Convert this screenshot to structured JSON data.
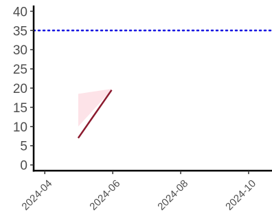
{
  "chart_data": {
    "type": "line",
    "title": "",
    "xlabel": "",
    "ylabel": "",
    "x_scale": "date",
    "xlim": [
      "2024-03-22",
      "2024-10-22"
    ],
    "ylim": [
      -1.5,
      41.5
    ],
    "x_ticks": [
      "2024-04-01",
      "2024-06-01",
      "2024-08-01",
      "2024-10-01"
    ],
    "x_tick_labels": [
      "2024-04",
      "2024-06",
      "2024-08",
      "2024-10"
    ],
    "y_ticks": [
      0,
      5,
      10,
      15,
      20,
      25,
      30,
      35,
      40
    ],
    "y_tick_labels": [
      "0",
      "5",
      "10",
      "15",
      "20",
      "25",
      "30",
      "35",
      "40"
    ],
    "grid": false,
    "legend": "none",
    "series": [
      {
        "x": [
          "2024-05-01",
          "2024-05-31"
        ],
        "values": [
          7,
          19.5
        ],
        "color": "#8b1a2e"
      }
    ],
    "band": {
      "x": [
        "2024-05-01",
        "2024-05-31"
      ],
      "lower": [
        10,
        19.5
      ],
      "upper": [
        18.5,
        19.8
      ],
      "color": "#fde3e8"
    },
    "reference_line": {
      "y": 35,
      "color": "#1010e0",
      "style": "dotted"
    }
  }
}
